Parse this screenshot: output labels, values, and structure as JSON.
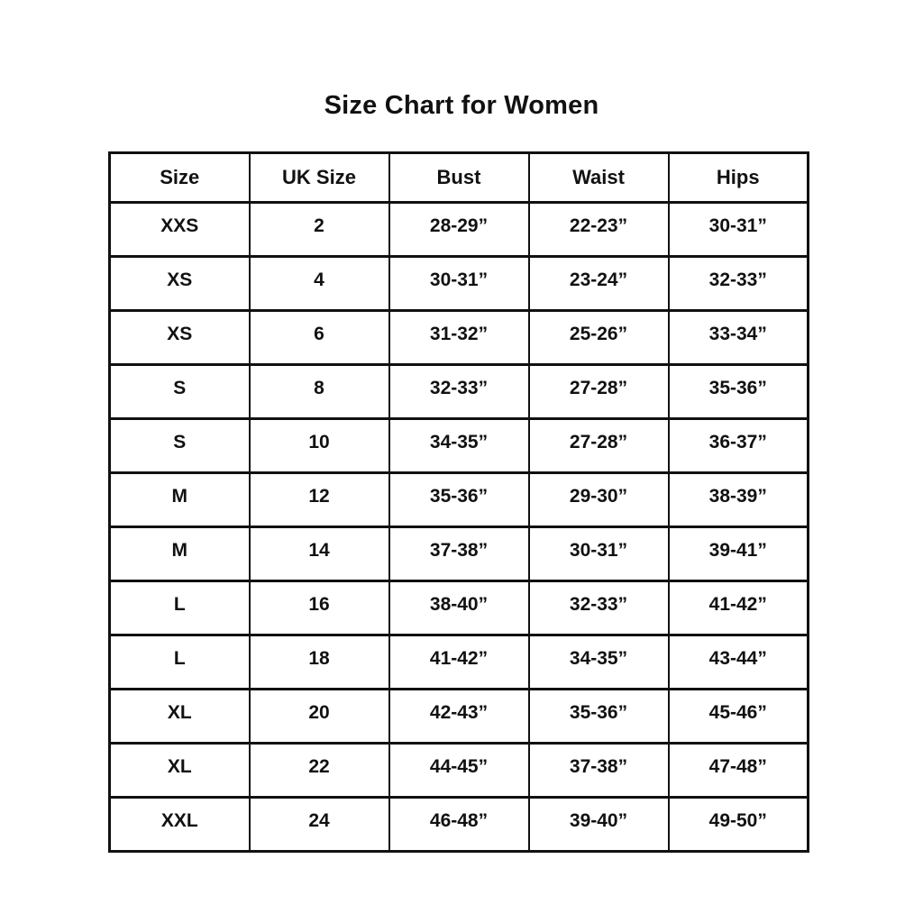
{
  "title": "Size Chart for Women",
  "colors": {
    "background": "#ffffff",
    "text": "#111111",
    "border": "#111111"
  },
  "chart_data": {
    "type": "table",
    "title": "Size Chart for Women",
    "columns": [
      "Size",
      "UK Size",
      "Bust",
      "Waist",
      "Hips"
    ],
    "rows": [
      [
        "XXS",
        "2",
        "28-29”",
        "22-23”",
        "30-31”"
      ],
      [
        "XS",
        "4",
        "30-31”",
        "23-24”",
        "32-33”"
      ],
      [
        "XS",
        "6",
        "31-32”",
        "25-26”",
        "33-34”"
      ],
      [
        "S",
        "8",
        "32-33”",
        "27-28”",
        "35-36”"
      ],
      [
        "S",
        "10",
        "34-35”",
        "27-28”",
        "36-37”"
      ],
      [
        "M",
        "12",
        "35-36”",
        "29-30”",
        "38-39”"
      ],
      [
        "M",
        "14",
        "37-38”",
        "30-31”",
        "39-41”"
      ],
      [
        "L",
        "16",
        "38-40”",
        "32-33”",
        "41-42”"
      ],
      [
        "L",
        "18",
        "41-42”",
        "34-35”",
        "43-44”"
      ],
      [
        "XL",
        "20",
        "42-43”",
        "35-36”",
        "45-46”"
      ],
      [
        "XL",
        "22",
        "44-45”",
        "37-38”",
        "47-48”"
      ],
      [
        "XXL",
        "24",
        "46-48”",
        "39-40”",
        "49-50”"
      ]
    ],
    "layout": {
      "grid": true,
      "header_row": true,
      "text_align": "center",
      "column_widths_pct": [
        20,
        20,
        20,
        20,
        20
      ]
    }
  }
}
